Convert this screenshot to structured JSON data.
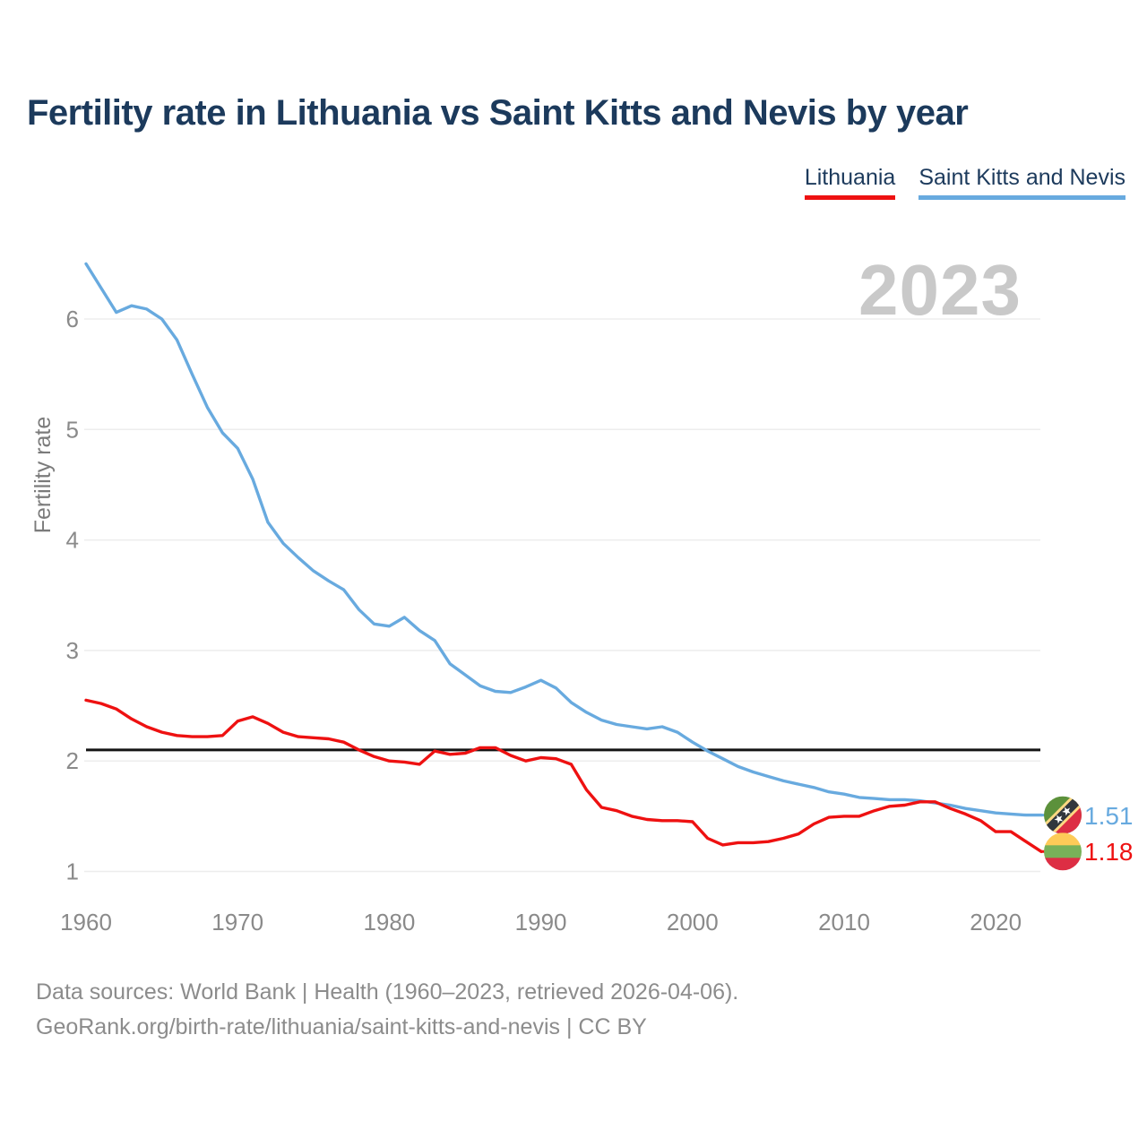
{
  "header": {
    "title": "Fertility rate in Lithuania vs Saint Kitts and Nevis by year"
  },
  "legend": [
    {
      "label": "Lithuania",
      "color": "#ee1111"
    },
    {
      "label": "Saint Kitts and Nevis",
      "color": "#68aadf"
    }
  ],
  "watermark": "2023",
  "footer": {
    "line1": "Data sources: World Bank | Health (1960–2023, retrieved 2026-04-06).",
    "line2": "GeoRank.org/birth-rate/lithuania/saint-kitts-and-nevis | CC BY"
  },
  "chart_data": {
    "type": "line",
    "title": "Fertility rate in Lithuania vs Saint Kitts and Nevis by year",
    "xlabel": "",
    "ylabel": "Fertility rate",
    "x_ticks": [
      1960,
      1970,
      1980,
      1990,
      2000,
      2010,
      2020
    ],
    "y_ticks": [
      1,
      2,
      3,
      4,
      5,
      6
    ],
    "xlim": [
      1960,
      2023
    ],
    "ylim": [
      0.8,
      6.6
    ],
    "grid": "horizontal",
    "legend_position": "top-right",
    "reference_line": {
      "value": 2.1,
      "color": "#141414"
    },
    "years": [
      1960,
      1961,
      1962,
      1963,
      1964,
      1965,
      1966,
      1967,
      1968,
      1969,
      1970,
      1971,
      1972,
      1973,
      1974,
      1975,
      1976,
      1977,
      1978,
      1979,
      1980,
      1981,
      1982,
      1983,
      1984,
      1985,
      1986,
      1987,
      1988,
      1989,
      1990,
      1991,
      1992,
      1993,
      1994,
      1995,
      1996,
      1997,
      1998,
      1999,
      2000,
      2001,
      2002,
      2003,
      2004,
      2005,
      2006,
      2007,
      2008,
      2009,
      2010,
      2011,
      2012,
      2013,
      2014,
      2015,
      2016,
      2017,
      2018,
      2019,
      2020,
      2021,
      2022,
      2023
    ],
    "series": [
      {
        "name": "Saint Kitts and Nevis",
        "color": "#68aadf",
        "end_label": "1.51",
        "end_value": 1.51,
        "flag": "saint_kitts_and_nevis",
        "values": [
          6.5,
          6.28,
          6.06,
          6.12,
          6.09,
          6.0,
          5.81,
          5.5,
          5.2,
          4.97,
          4.83,
          4.55,
          4.16,
          3.97,
          3.84,
          3.72,
          3.63,
          3.55,
          3.37,
          3.24,
          3.22,
          3.3,
          3.18,
          3.09,
          2.88,
          2.78,
          2.68,
          2.63,
          2.62,
          2.67,
          2.73,
          2.66,
          2.53,
          2.44,
          2.37,
          2.33,
          2.31,
          2.29,
          2.31,
          2.26,
          2.17,
          2.09,
          2.02,
          1.95,
          1.9,
          1.86,
          1.82,
          1.79,
          1.76,
          1.72,
          1.7,
          1.67,
          1.66,
          1.65,
          1.65,
          1.64,
          1.62,
          1.6,
          1.57,
          1.55,
          1.53,
          1.52,
          1.51,
          1.51
        ]
      },
      {
        "name": "Lithuania",
        "color": "#ee1111",
        "end_label": "1.18",
        "end_value": 1.18,
        "flag": "lithuania",
        "values": [
          2.55,
          2.52,
          2.47,
          2.38,
          2.31,
          2.26,
          2.23,
          2.22,
          2.22,
          2.23,
          2.36,
          2.4,
          2.34,
          2.26,
          2.22,
          2.21,
          2.2,
          2.17,
          2.1,
          2.04,
          2.0,
          1.99,
          1.97,
          2.09,
          2.06,
          2.07,
          2.12,
          2.12,
          2.05,
          2.0,
          2.03,
          2.02,
          1.97,
          1.74,
          1.58,
          1.55,
          1.5,
          1.47,
          1.46,
          1.46,
          1.45,
          1.3,
          1.24,
          1.26,
          1.26,
          1.27,
          1.3,
          1.34,
          1.43,
          1.49,
          1.5,
          1.5,
          1.55,
          1.59,
          1.6,
          1.63,
          1.63,
          1.57,
          1.52,
          1.46,
          1.36,
          1.36,
          1.27,
          1.18
        ]
      }
    ],
    "flag_colors": {
      "lithuania": {
        "stripes": [
          "#FDCB58",
          "#78B159",
          "#DD2E44"
        ]
      },
      "saint_kitts_and_nevis": {
        "green": "#5C913B",
        "red": "#DD2E44",
        "yellow": "#FFD983",
        "black": "#31373D",
        "star": "#FFFFFF"
      }
    },
    "colors": {
      "grid": "#ededed",
      "tick_text": "#8a8a8a",
      "watermark": "#c9c9c9",
      "title_text": "#1c3a5c"
    }
  }
}
